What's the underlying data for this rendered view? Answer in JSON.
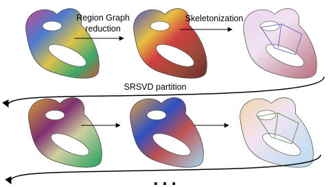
{
  "labels": {
    "region_graph_reduction": [
      "Region Graph",
      "reduction"
    ],
    "skeletonization": "Skeletonization",
    "srsvd_partition": "SRSVD partition",
    "continuation": "..."
  }
}
